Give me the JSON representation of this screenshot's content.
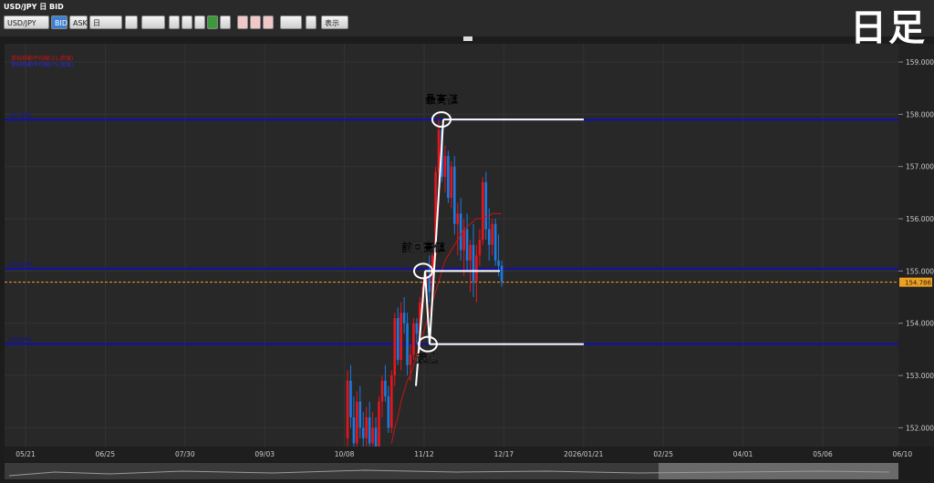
{
  "header": {
    "title": "USD/JPY 日 BID"
  },
  "toolbar": {
    "symbol": "USD/JPY",
    "bid": "BID",
    "ask": "ASK",
    "period": "日",
    "display": "表示"
  },
  "overlay_text": "日足",
  "chart_data": {
    "type": "candlestick",
    "open": [
      151.8,
      152.9,
      152.2,
      151.7,
      152.5,
      152.0,
      151.8,
      152.2,
      151.7,
      152.0,
      151.6,
      152.5,
      152.9,
      152.6,
      152.0,
      153.0,
      154.1,
      153.3,
      154.2,
      154.0,
      153.2,
      153.4,
      154.0,
      153.8,
      154.4,
      154.7,
      154.9,
      154.6,
      155.3,
      156.9,
      157.7,
      156.8,
      157.2,
      156.4,
      157.0,
      155.9,
      156.1,
      155.4,
      155.8,
      155.2,
      155.5,
      154.8,
      155.3,
      155.6,
      156.7,
      155.8,
      155.5,
      155.9,
      155.2,
      155.1
    ],
    "high": [
      153.1,
      153.2,
      152.6,
      152.7,
      152.8,
      152.3,
      152.4,
      152.5,
      152.3,
      152.2,
      152.6,
      153.0,
      153.2,
      152.8,
      153.1,
      154.2,
      154.3,
      154.4,
      154.5,
      154.2,
      153.6,
      154.1,
      154.1,
      154.5,
      154.8,
      155.0,
      155.3,
      155.4,
      157.0,
      157.9,
      157.8,
      157.4,
      157.3,
      157.1,
      157.2,
      156.3,
      156.4,
      156.0,
      156.1,
      155.6,
      155.9,
      155.5,
      155.8,
      156.8,
      156.9,
      156.2,
      156.0,
      156.0,
      155.7,
      155.2
    ],
    "low": [
      151.5,
      152.0,
      151.5,
      151.4,
      151.8,
      151.5,
      151.5,
      151.6,
      151.5,
      151.4,
      151.5,
      152.2,
      152.5,
      151.9,
      151.9,
      152.8,
      153.2,
      153.1,
      153.8,
      153.0,
      152.9,
      153.3,
      153.6,
      153.5,
      154.3,
      154.5,
      154.4,
      154.5,
      155.2,
      156.7,
      156.7,
      156.5,
      156.3,
      156.2,
      155.7,
      155.3,
      155.2,
      154.9,
      155.0,
      154.6,
      154.5,
      154.4,
      155.1,
      155.5,
      155.6,
      155.2,
      155.3,
      155.1,
      154.9,
      154.7
    ],
    "close": [
      152.9,
      152.2,
      151.7,
      152.5,
      152.0,
      151.8,
      152.2,
      151.7,
      152.0,
      151.6,
      152.5,
      152.9,
      152.6,
      152.0,
      153.0,
      154.1,
      153.3,
      154.2,
      154.0,
      153.2,
      153.4,
      154.0,
      153.8,
      154.4,
      154.7,
      154.9,
      154.6,
      155.3,
      156.9,
      157.7,
      156.8,
      157.2,
      156.4,
      157.0,
      155.9,
      156.1,
      155.4,
      155.8,
      155.2,
      155.5,
      154.8,
      155.3,
      155.6,
      156.7,
      155.8,
      155.5,
      155.9,
      155.2,
      155.1,
      154.8
    ],
    "up_color": "#e8141c",
    "down_color": "#1a7be0",
    "series": [
      {
        "name": "単純移動平均線(21,終値)",
        "color": "#c81414",
        "values": [
          null,
          null,
          null,
          null,
          null,
          null,
          null,
          null,
          null,
          null,
          null,
          null,
          null,
          null,
          151.7,
          152.0,
          152.2,
          152.5,
          152.7,
          152.9,
          153.0,
          153.2,
          153.4,
          153.6,
          153.8,
          154.0,
          154.2,
          154.4,
          154.6,
          154.8,
          155.0,
          155.2,
          155.3,
          155.4,
          155.5,
          155.6,
          155.7,
          155.8,
          155.85,
          155.9,
          155.95,
          156.0,
          156.0,
          156.0,
          156.05,
          156.05,
          156.1,
          156.1,
          156.1,
          156.1
        ]
      },
      {
        "name": "単純移動平均線(75,終値)",
        "color": "#2a2ad0",
        "values": [
          null,
          null,
          null,
          null,
          null,
          null,
          null,
          null,
          null,
          null,
          null,
          null,
          null,
          null,
          null,
          null,
          null,
          null,
          null,
          null,
          null,
          null,
          null,
          null,
          null,
          null,
          null,
          null,
          null,
          null,
          null,
          null,
          null,
          null,
          null,
          null,
          null,
          null,
          null,
          null,
          null,
          null,
          null,
          null,
          null,
          null,
          null,
          null,
          null,
          null
        ]
      }
    ],
    "ylim": [
      151.64,
      159.35
    ],
    "yticks": [
      {
        "value": 152,
        "label": "152.000"
      },
      {
        "value": 153,
        "label": "153.000"
      },
      {
        "value": 154,
        "label": "154.000"
      },
      {
        "value": 155,
        "label": "155.000"
      },
      {
        "value": 156,
        "label": "156.000"
      },
      {
        "value": 157,
        "label": "157.000"
      },
      {
        "value": 158,
        "label": "158.000"
      },
      {
        "value": 159,
        "label": "159.000"
      }
    ],
    "x_labels": [
      "05/21",
      "06/25",
      "07/30",
      "09/03",
      "10/08",
      "11/12",
      "12/17",
      "2026/01/21",
      "02/25",
      "04/01",
      "05/06",
      "06/10"
    ],
    "levels": [
      {
        "value": 157.897,
        "label": "157.897",
        "color": "#1010b0"
      },
      {
        "value": 155.045,
        "label": "155.045",
        "color": "#1010b0"
      },
      {
        "value": 153.605,
        "label": "153.605",
        "color": "#1010b0"
      }
    ],
    "current": {
      "value": 154.786,
      "label": "154.786",
      "color": "#f0a020"
    },
    "annotations": [
      {
        "text": "最高値",
        "value": 157.9
      },
      {
        "text": "前回高値",
        "value": 155.0
      },
      {
        "text": "起点",
        "value": 153.6
      }
    ],
    "zigzag": [
      152.8,
      155.0,
      153.6,
      157.9
    ]
  }
}
